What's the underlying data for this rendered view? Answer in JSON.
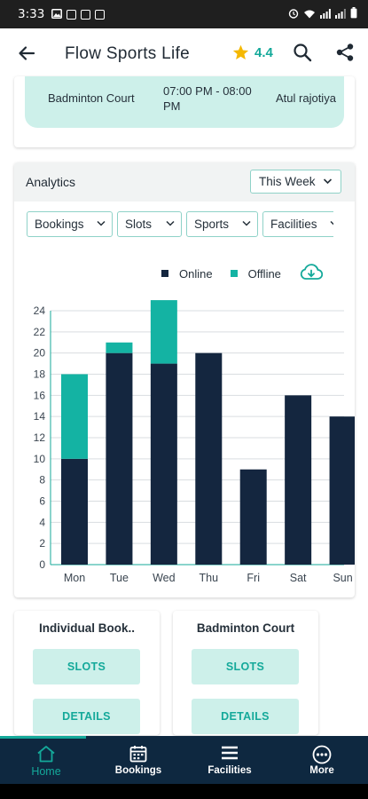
{
  "status_bar": {
    "time": "3:33",
    "left_icons": [
      "image-icon",
      "notification-box-icon",
      "notification-box-icon",
      "notification-box-icon"
    ],
    "right_icons": [
      "alarm-icon",
      "wifi-icon",
      "signal-icon",
      "signal-icon",
      "battery-icon"
    ]
  },
  "app_bar": {
    "title": "Flow Sports Life",
    "rating": "4.4",
    "icons": [
      "back-arrow-icon",
      "star-icon",
      "search-icon",
      "share-icon"
    ]
  },
  "booking_row": {
    "court": "Badminton Court",
    "time": "07:00 PM - 08:00 PM",
    "user": "Atul rajotiya"
  },
  "analytics": {
    "title": "Analytics",
    "period": "This Week",
    "filters": [
      "Bookings",
      "Slots",
      "Sports",
      "Facilities"
    ]
  },
  "chart_data": {
    "type": "bar",
    "stacked": true,
    "categories": [
      "Mon",
      "Tue",
      "Wed",
      "Thu",
      "Fri",
      "Sat",
      "Sun"
    ],
    "series": [
      {
        "name": "Online",
        "color": "#14263f",
        "values": [
          10,
          20,
          19,
          20,
          9,
          16,
          14
        ]
      },
      {
        "name": "Offline",
        "color": "#14b3a3",
        "values": [
          8,
          1,
          6,
          0,
          0,
          0,
          0
        ]
      }
    ],
    "ylim": [
      0,
      24
    ],
    "yticks": [
      0,
      2,
      4,
      6,
      8,
      10,
      12,
      14,
      16,
      18,
      20,
      22,
      24
    ],
    "grid": true,
    "legend": "top-right",
    "xlabel": "",
    "ylabel": ""
  },
  "cards": [
    {
      "title": "Individual Book..",
      "buttons": [
        "SLOTS",
        "DETAILS"
      ]
    },
    {
      "title": "Badminton Court",
      "buttons": [
        "SLOTS",
        "DETAILS"
      ]
    }
  ],
  "bottom_nav": {
    "items": [
      {
        "label": "Home",
        "icon": "home-icon",
        "active": true
      },
      {
        "label": "Bookings",
        "icon": "calendar-icon",
        "active": false
      },
      {
        "label": "Facilities",
        "icon": "menu-icon",
        "active": false
      },
      {
        "label": "More",
        "icon": "more-circle-icon",
        "active": false
      }
    ]
  },
  "colors": {
    "accent": "#14a99a",
    "online": "#14263f",
    "offline": "#14b3a3",
    "nav_bg": "#0e2840",
    "light_teal": "#cdf0ea",
    "star": "#f5b800"
  }
}
